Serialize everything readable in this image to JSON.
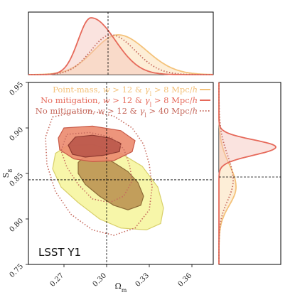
{
  "chart_data": {
    "type": "scatter",
    "subtype": "corner-plot-posterior-contours",
    "panel_label": "LSST Y1",
    "xlabel": "Ω_m",
    "ylabel": "S_8",
    "xlim": [
      0.245,
      0.375
    ],
    "ylim": [
      0.75,
      0.95
    ],
    "x_ticks": [
      "0.27",
      "0.30",
      "0.33",
      "0.36"
    ],
    "y_ticks": [
      "0.75",
      "0.80",
      "0.85",
      "0.90",
      "0.95"
    ],
    "x_tick_values": [
      0.27,
      0.3,
      0.33,
      0.36
    ],
    "y_tick_values": [
      0.75,
      0.8,
      0.85,
      0.9,
      0.95
    ],
    "fiducial": {
      "omega_m": 0.3,
      "s8": 0.843
    },
    "legend_position": "top-right",
    "colors": {
      "point_mass": "#f4c27a",
      "no_mit_8": "#e6695a",
      "no_mit_40": "#c66a5e",
      "point_mass_fill": "#f2f08a",
      "no_mit_8_fill": "#e8826a"
    },
    "series": [
      {
        "name": "Point-mass, w > 12 & γ_l > 8 Mpc/h",
        "line_style": "solid",
        "omega_m_mode": 0.305,
        "s8_mode": 0.833,
        "contour_68": [
          [
            0.285,
            0.87
          ],
          [
            0.295,
            0.87
          ],
          [
            0.305,
            0.862
          ],
          [
            0.315,
            0.852
          ],
          [
            0.322,
            0.84
          ],
          [
            0.326,
            0.825
          ],
          [
            0.324,
            0.815
          ],
          [
            0.315,
            0.81
          ],
          [
            0.305,
            0.815
          ],
          [
            0.295,
            0.825
          ],
          [
            0.285,
            0.838
          ],
          [
            0.28,
            0.85
          ],
          [
            0.28,
            0.862
          ]
        ],
        "contour_95": [
          [
            0.272,
            0.88
          ],
          [
            0.29,
            0.882
          ],
          [
            0.31,
            0.872
          ],
          [
            0.325,
            0.858
          ],
          [
            0.336,
            0.835
          ],
          [
            0.34,
            0.812
          ],
          [
            0.338,
            0.795
          ],
          [
            0.328,
            0.788
          ],
          [
            0.31,
            0.79
          ],
          [
            0.295,
            0.8
          ],
          [
            0.28,
            0.818
          ],
          [
            0.268,
            0.835
          ],
          [
            0.262,
            0.855
          ],
          [
            0.264,
            0.872
          ]
        ]
      },
      {
        "name": "No mitigation, w > 12 & γ_l > 8 Mpc/h",
        "line_style": "solid",
        "omega_m_mode": 0.289,
        "s8_mode": 0.879,
        "contour_68": [
          [
            0.278,
            0.89
          ],
          [
            0.29,
            0.892
          ],
          [
            0.302,
            0.889
          ],
          [
            0.31,
            0.883
          ],
          [
            0.309,
            0.874
          ],
          [
            0.298,
            0.87
          ],
          [
            0.285,
            0.868
          ],
          [
            0.276,
            0.871
          ],
          [
            0.273,
            0.881
          ]
        ],
        "contour_95": [
          [
            0.27,
            0.9
          ],
          [
            0.29,
            0.902
          ],
          [
            0.31,
            0.897
          ],
          [
            0.32,
            0.886
          ],
          [
            0.318,
            0.874
          ],
          [
            0.305,
            0.864
          ],
          [
            0.29,
            0.863
          ],
          [
            0.277,
            0.866
          ],
          [
            0.267,
            0.876
          ],
          [
            0.266,
            0.889
          ]
        ]
      },
      {
        "name": "No mitigation, w > 12 & γ_l > 40 Mpc/h",
        "line_style": "dotted",
        "omega_m_mode": 0.298,
        "s8_mode": 0.84,
        "contour_68": [
          [
            0.272,
            0.893
          ],
          [
            0.288,
            0.895
          ],
          [
            0.303,
            0.89
          ],
          [
            0.312,
            0.877
          ],
          [
            0.316,
            0.86
          ],
          [
            0.318,
            0.842
          ],
          [
            0.312,
            0.825
          ],
          [
            0.302,
            0.818
          ],
          [
            0.29,
            0.822
          ],
          [
            0.28,
            0.838
          ],
          [
            0.272,
            0.857
          ],
          [
            0.268,
            0.875
          ]
        ],
        "contour_95": [
          [
            0.262,
            0.912
          ],
          [
            0.285,
            0.92
          ],
          [
            0.305,
            0.913
          ],
          [
            0.318,
            0.9
          ],
          [
            0.326,
            0.882
          ],
          [
            0.33,
            0.86
          ],
          [
            0.332,
            0.835
          ],
          [
            0.33,
            0.81
          ],
          [
            0.32,
            0.79
          ],
          [
            0.305,
            0.782
          ],
          [
            0.29,
            0.788
          ],
          [
            0.275,
            0.805
          ],
          [
            0.264,
            0.83
          ],
          [
            0.258,
            0.86
          ],
          [
            0.257,
            0.89
          ]
        ]
      }
    ]
  }
}
